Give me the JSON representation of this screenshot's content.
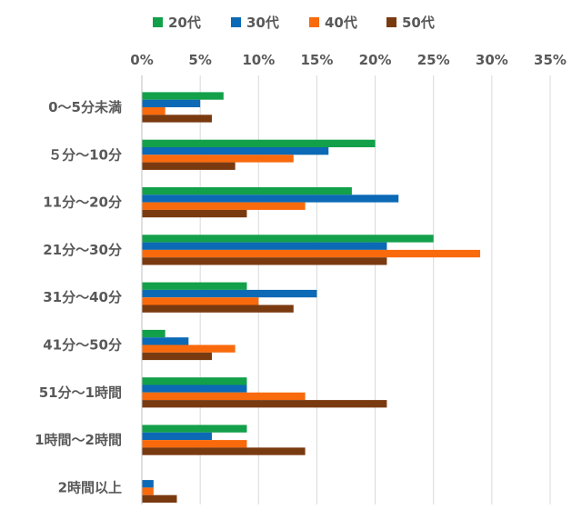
{
  "chart_data": {
    "type": "bar",
    "orientation": "horizontal",
    "categories": [
      "0〜5分未満",
      "５分〜10分",
      "11分〜20分",
      "21分〜30分",
      "31分〜40分",
      "41分〜50分",
      "51分〜1時間",
      "1時間〜2時間",
      "2時間以上"
    ],
    "series": [
      {
        "name": "20代",
        "color": "#13A04A",
        "values": [
          7,
          20,
          18,
          25,
          9,
          2,
          9,
          9,
          0
        ]
      },
      {
        "name": "30代",
        "color": "#0B69B5",
        "values": [
          5,
          16,
          22,
          21,
          15,
          4,
          9,
          6,
          1
        ]
      },
      {
        "name": "40代",
        "color": "#F96A0C",
        "values": [
          2,
          13,
          14,
          29,
          10,
          8,
          14,
          9,
          1
        ]
      },
      {
        "name": "50代",
        "color": "#7A3A10",
        "values": [
          6,
          8,
          9,
          21,
          13,
          6,
          21,
          14,
          3
        ]
      }
    ],
    "xlim": [
      0,
      35
    ],
    "xticks": [
      0,
      5,
      10,
      15,
      20,
      25,
      30,
      35
    ],
    "xtick_labels": [
      "0%",
      "5%",
      "10%",
      "15%",
      "20%",
      "25%",
      "30%",
      "35%"
    ],
    "tick_position": "top",
    "grid": true,
    "legend_position": "top"
  }
}
